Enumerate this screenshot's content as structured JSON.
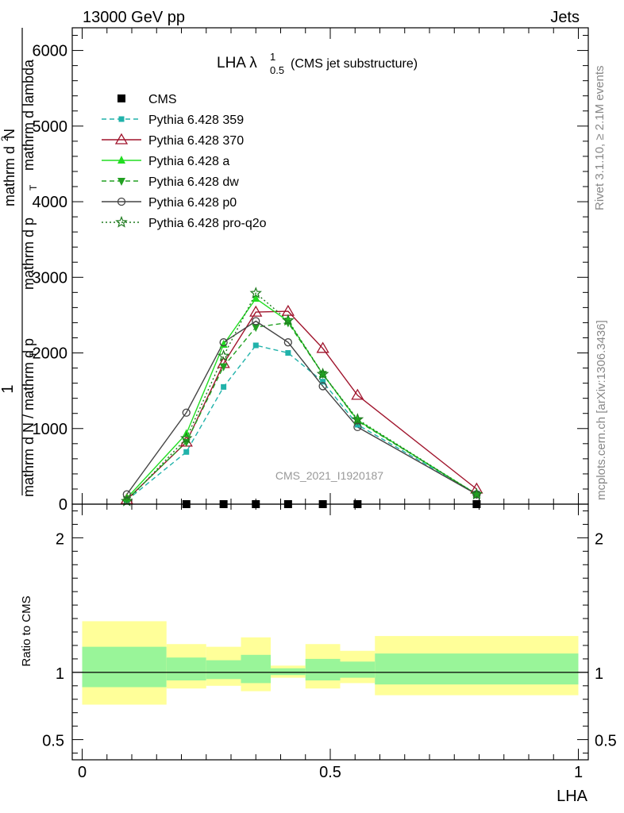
{
  "header": {
    "left": "13000 GeV pp",
    "right": "Jets"
  },
  "side_labels": {
    "rivet": "Rivet 3.1.10, ≥ 2.1M events",
    "mcplots": "mcplots.cern.ch [arXiv:1306.3436]"
  },
  "chart_data": [
    {
      "type": "line",
      "title": "LHA λ",
      "title_sup": "1",
      "title_sub": "0.5",
      "title_suffix": "(CMS jet substructure)",
      "watermark": "CMS_2021_I1920187",
      "ylabel_num_a": "1",
      "ylabel_num_b": "mathrm d N / mathrm d p",
      "ylabel_num_b_sub": "T",
      "ylabel_frac_a": "mathrm d",
      "ylabel_frac_a_sup": "2",
      "ylabel_frac_b": "N",
      "ylabel_den": "mathrm d p",
      "ylabel_den_sub": "T",
      "ylabel_den_b": "mathrm d lambda",
      "xlim": [
        -0.02,
        1.02
      ],
      "ylim": [
        0,
        6300
      ],
      "yticks": [
        0,
        1000,
        2000,
        3000,
        4000,
        5000,
        6000
      ],
      "ytick_labels": [
        "0",
        "1000",
        "2000",
        "3000",
        "4000",
        "5000",
        "6000"
      ],
      "x": [
        0.09,
        0.21,
        0.285,
        0.35,
        0.415,
        0.485,
        0.555,
        0.795
      ],
      "series": [
        {
          "name": "CMS",
          "color": "#000000",
          "marker": "square",
          "dash": "none",
          "x": [
            0.21,
            0.285,
            0.35,
            0.415,
            0.485,
            0.555,
            0.795
          ],
          "values": [
            0,
            0,
            0,
            0,
            0,
            0,
            0
          ]
        },
        {
          "name": "Pythia 6.428 359",
          "color": "#20b2aa",
          "marker": "square-small",
          "dash": "6,4",
          "values": [
            50,
            690,
            1550,
            2100,
            2000,
            1620,
            1050,
            140
          ]
        },
        {
          "name": "Pythia 6.428 370",
          "color": "#a0142c",
          "marker": "triangle-open",
          "dash": "none",
          "values": [
            60,
            820,
            1860,
            2540,
            2550,
            2060,
            1440,
            200
          ]
        },
        {
          "name": "Pythia 6.428 a",
          "color": "#22dd22",
          "marker": "triangle",
          "dash": "none",
          "values": [
            80,
            930,
            2110,
            2720,
            2420,
            1720,
            1110,
            130
          ]
        },
        {
          "name": "Pythia 6.428 dw",
          "color": "#22a022",
          "marker": "triangle-down",
          "dash": "6,4",
          "values": [
            60,
            820,
            1820,
            2340,
            2400,
            1720,
            1100,
            130
          ]
        },
        {
          "name": "Pythia 6.428 p0",
          "color": "#444444",
          "marker": "circle-open",
          "dash": "none",
          "values": [
            130,
            1210,
            2140,
            2420,
            2140,
            1560,
            1020,
            130
          ]
        },
        {
          "name": "Pythia 6.428 pro-q2o",
          "color": "#1e7a1e",
          "marker": "star",
          "dash": "2,3",
          "values": [
            40,
            870,
            1960,
            2790,
            2430,
            1720,
            1120,
            130
          ]
        }
      ]
    },
    {
      "type": "area",
      "ylabel": "Ratio to CMS",
      "xlabel": "LHA",
      "xlim": [
        -0.02,
        1.02
      ],
      "ylim": [
        0.35,
        2.25
      ],
      "yticks": [
        0.5,
        1,
        2
      ],
      "ytick_labels": [
        "0.5",
        "1",
        "2"
      ],
      "xticks": [
        0,
        0.5,
        1
      ],
      "xtick_labels": [
        "0",
        "0.5",
        "1"
      ],
      "bins": [
        {
          "lo": 0.0,
          "hi": 0.17,
          "yellow": [
            0.76,
            1.38
          ],
          "green": [
            0.89,
            1.19
          ]
        },
        {
          "lo": 0.17,
          "hi": 0.25,
          "yellow": [
            0.88,
            1.21
          ],
          "green": [
            0.94,
            1.11
          ]
        },
        {
          "lo": 0.25,
          "hi": 0.32,
          "yellow": [
            0.9,
            1.19
          ],
          "green": [
            0.95,
            1.09
          ]
        },
        {
          "lo": 0.32,
          "hi": 0.38,
          "yellow": [
            0.86,
            1.26
          ],
          "green": [
            0.92,
            1.13
          ]
        },
        {
          "lo": 0.38,
          "hi": 0.45,
          "yellow": [
            0.96,
            1.05
          ],
          "green": [
            0.98,
            1.03
          ]
        },
        {
          "lo": 0.45,
          "hi": 0.52,
          "yellow": [
            0.88,
            1.21
          ],
          "green": [
            0.94,
            1.1
          ]
        },
        {
          "lo": 0.52,
          "hi": 0.59,
          "yellow": [
            0.92,
            1.16
          ],
          "green": [
            0.96,
            1.08
          ]
        },
        {
          "lo": 0.59,
          "hi": 1.0,
          "yellow": [
            0.83,
            1.27
          ],
          "green": [
            0.91,
            1.14
          ]
        }
      ],
      "reference": 1
    }
  ]
}
